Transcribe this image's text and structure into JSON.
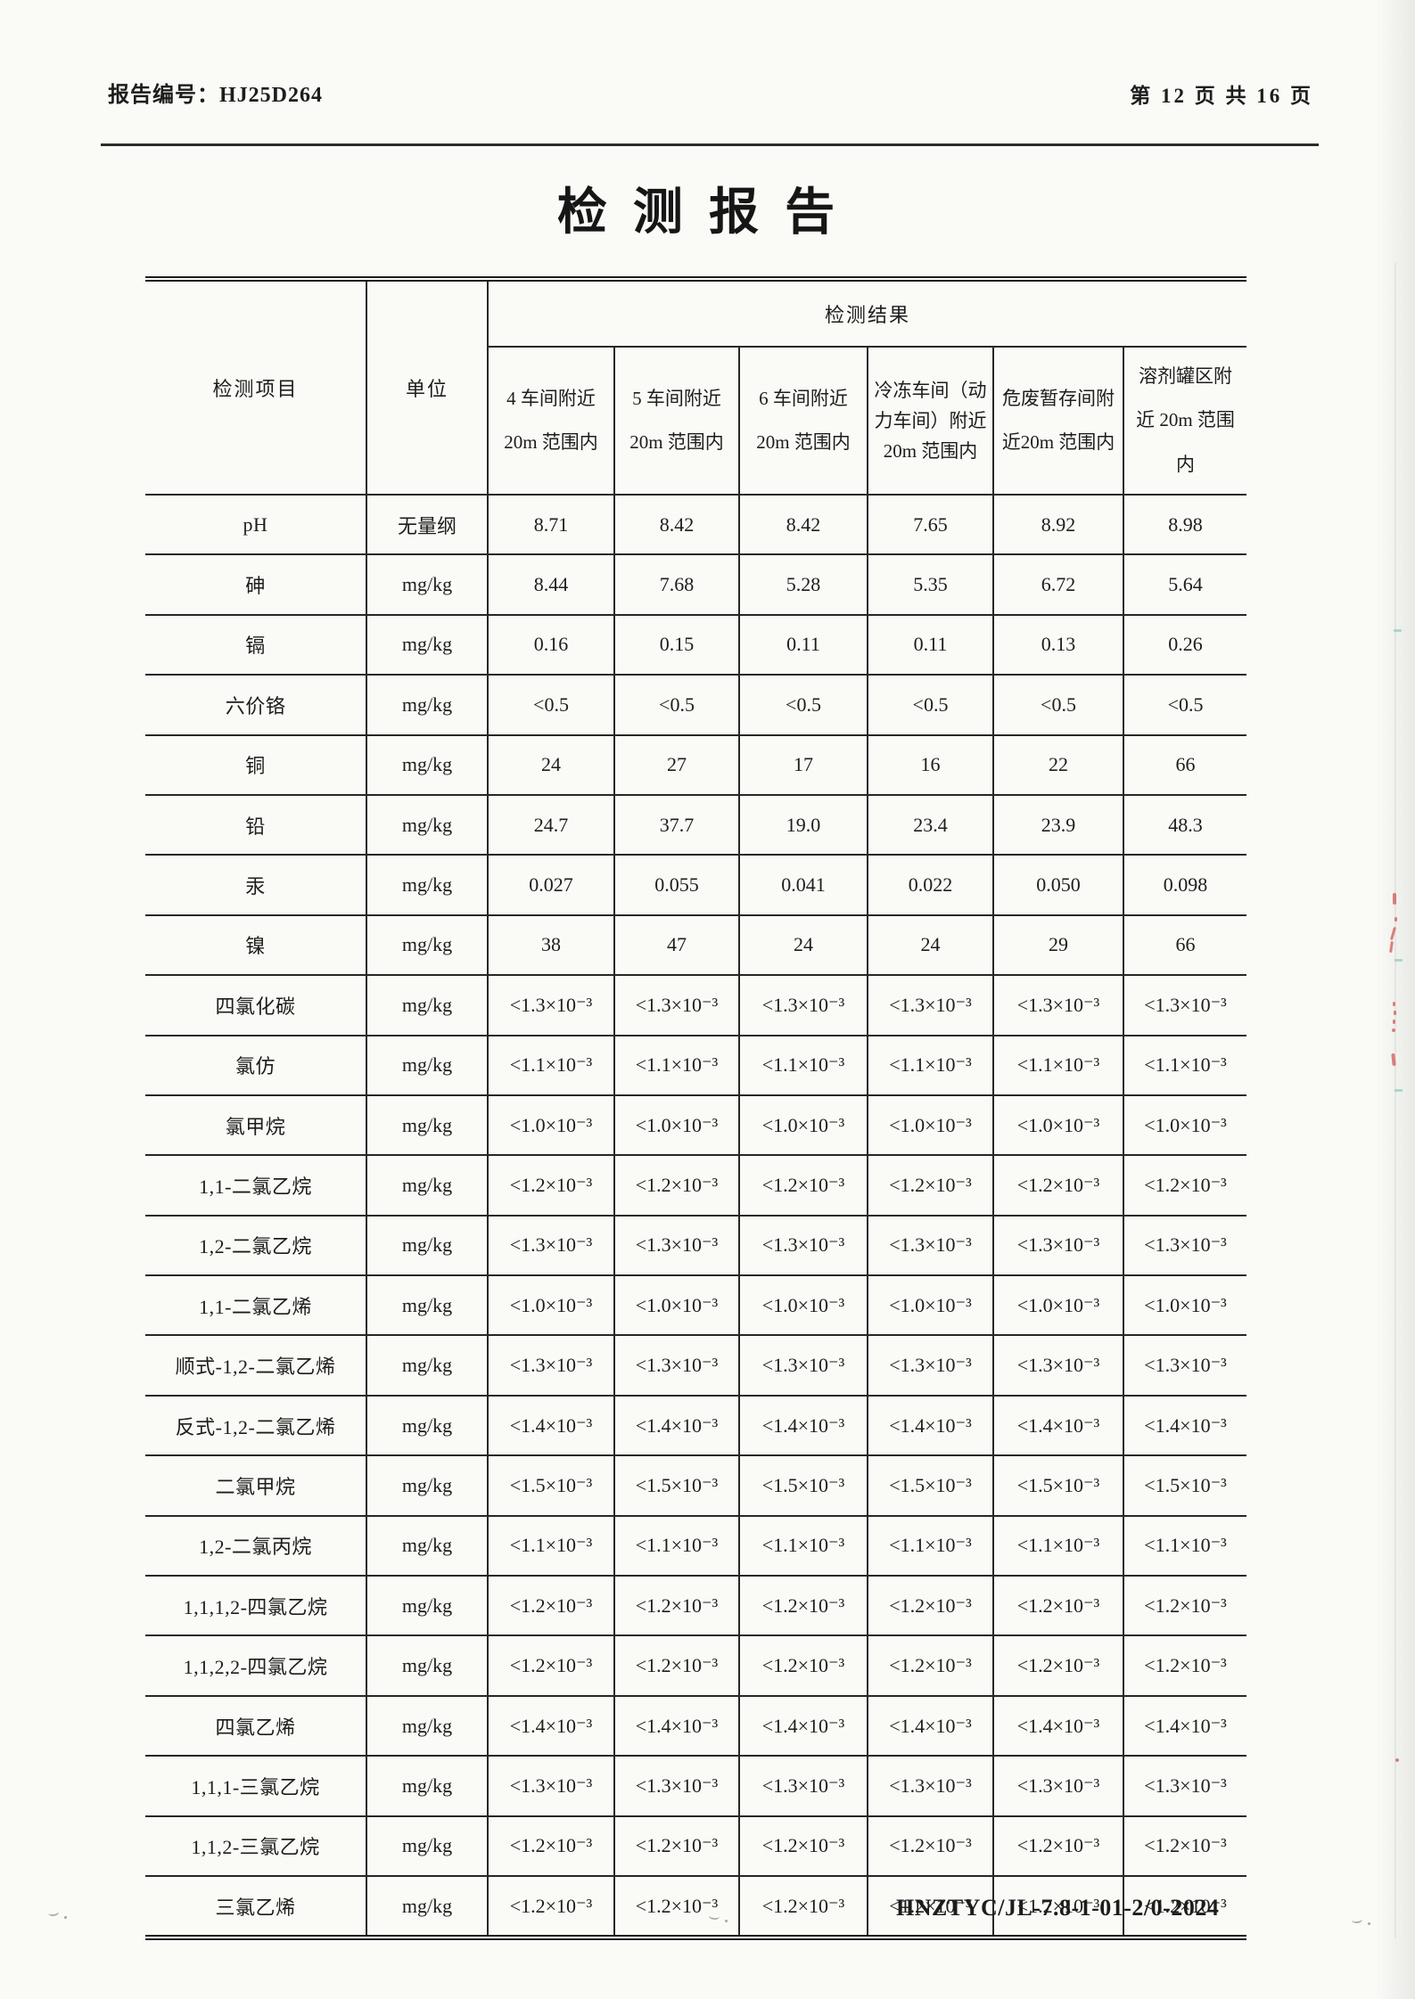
{
  "header": {
    "report_no_label": "报告编号：",
    "report_no": "HJ25D264",
    "page_info": "第 12 页 共 16 页"
  },
  "title": "检测报告",
  "table": {
    "col_item": "检测项目",
    "col_unit": "单位",
    "results_header": "检测结果",
    "locations": [
      "4 车间附近 20m 范围内",
      "5 车间附近 20m 范围内",
      "6 车间附近 20m 范围内",
      "冷冻车间（动力车间）附近 20m 范围内",
      "危废暂存间附近20m 范围内",
      "溶剂罐区附近 20m 范围内"
    ],
    "rows": [
      {
        "item": "pH",
        "unit": "无量纲",
        "values": [
          "8.71",
          "8.42",
          "8.42",
          "7.65",
          "8.92",
          "8.98"
        ]
      },
      {
        "item": "砷",
        "unit": "mg/kg",
        "values": [
          "8.44",
          "7.68",
          "5.28",
          "5.35",
          "6.72",
          "5.64"
        ]
      },
      {
        "item": "镉",
        "unit": "mg/kg",
        "values": [
          "0.16",
          "0.15",
          "0.11",
          "0.11",
          "0.13",
          "0.26"
        ]
      },
      {
        "item": "六价铬",
        "unit": "mg/kg",
        "values": [
          "<0.5",
          "<0.5",
          "<0.5",
          "<0.5",
          "<0.5",
          "<0.5"
        ]
      },
      {
        "item": "铜",
        "unit": "mg/kg",
        "values": [
          "24",
          "27",
          "17",
          "16",
          "22",
          "66"
        ]
      },
      {
        "item": "铅",
        "unit": "mg/kg",
        "values": [
          "24.7",
          "37.7",
          "19.0",
          "23.4",
          "23.9",
          "48.3"
        ]
      },
      {
        "item": "汞",
        "unit": "mg/kg",
        "values": [
          "0.027",
          "0.055",
          "0.041",
          "0.022",
          "0.050",
          "0.098"
        ]
      },
      {
        "item": "镍",
        "unit": "mg/kg",
        "values": [
          "38",
          "47",
          "24",
          "24",
          "29",
          "66"
        ]
      },
      {
        "item": "四氯化碳",
        "unit": "mg/kg",
        "values": [
          "<1.3×10⁻³",
          "<1.3×10⁻³",
          "<1.3×10⁻³",
          "<1.3×10⁻³",
          "<1.3×10⁻³",
          "<1.3×10⁻³"
        ]
      },
      {
        "item": "氯仿",
        "unit": "mg/kg",
        "values": [
          "<1.1×10⁻³",
          "<1.1×10⁻³",
          "<1.1×10⁻³",
          "<1.1×10⁻³",
          "<1.1×10⁻³",
          "<1.1×10⁻³"
        ]
      },
      {
        "item": "氯甲烷",
        "unit": "mg/kg",
        "values": [
          "<1.0×10⁻³",
          "<1.0×10⁻³",
          "<1.0×10⁻³",
          "<1.0×10⁻³",
          "<1.0×10⁻³",
          "<1.0×10⁻³"
        ]
      },
      {
        "item": "1,1-二氯乙烷",
        "unit": "mg/kg",
        "values": [
          "<1.2×10⁻³",
          "<1.2×10⁻³",
          "<1.2×10⁻³",
          "<1.2×10⁻³",
          "<1.2×10⁻³",
          "<1.2×10⁻³"
        ]
      },
      {
        "item": "1,2-二氯乙烷",
        "unit": "mg/kg",
        "values": [
          "<1.3×10⁻³",
          "<1.3×10⁻³",
          "<1.3×10⁻³",
          "<1.3×10⁻³",
          "<1.3×10⁻³",
          "<1.3×10⁻³"
        ]
      },
      {
        "item": "1,1-二氯乙烯",
        "unit": "mg/kg",
        "values": [
          "<1.0×10⁻³",
          "<1.0×10⁻³",
          "<1.0×10⁻³",
          "<1.0×10⁻³",
          "<1.0×10⁻³",
          "<1.0×10⁻³"
        ]
      },
      {
        "item": "顺式-1,2-二氯乙烯",
        "unit": "mg/kg",
        "values": [
          "<1.3×10⁻³",
          "<1.3×10⁻³",
          "<1.3×10⁻³",
          "<1.3×10⁻³",
          "<1.3×10⁻³",
          "<1.3×10⁻³"
        ]
      },
      {
        "item": "反式-1,2-二氯乙烯",
        "unit": "mg/kg",
        "values": [
          "<1.4×10⁻³",
          "<1.4×10⁻³",
          "<1.4×10⁻³",
          "<1.4×10⁻³",
          "<1.4×10⁻³",
          "<1.4×10⁻³"
        ]
      },
      {
        "item": "二氯甲烷",
        "unit": "mg/kg",
        "values": [
          "<1.5×10⁻³",
          "<1.5×10⁻³",
          "<1.5×10⁻³",
          "<1.5×10⁻³",
          "<1.5×10⁻³",
          "<1.5×10⁻³"
        ]
      },
      {
        "item": "1,2-二氯丙烷",
        "unit": "mg/kg",
        "values": [
          "<1.1×10⁻³",
          "<1.1×10⁻³",
          "<1.1×10⁻³",
          "<1.1×10⁻³",
          "<1.1×10⁻³",
          "<1.1×10⁻³"
        ]
      },
      {
        "item": "1,1,1,2-四氯乙烷",
        "unit": "mg/kg",
        "values": [
          "<1.2×10⁻³",
          "<1.2×10⁻³",
          "<1.2×10⁻³",
          "<1.2×10⁻³",
          "<1.2×10⁻³",
          "<1.2×10⁻³"
        ]
      },
      {
        "item": "1,1,2,2-四氯乙烷",
        "unit": "mg/kg",
        "values": [
          "<1.2×10⁻³",
          "<1.2×10⁻³",
          "<1.2×10⁻³",
          "<1.2×10⁻³",
          "<1.2×10⁻³",
          "<1.2×10⁻³"
        ]
      },
      {
        "item": "四氯乙烯",
        "unit": "mg/kg",
        "values": [
          "<1.4×10⁻³",
          "<1.4×10⁻³",
          "<1.4×10⁻³",
          "<1.4×10⁻³",
          "<1.4×10⁻³",
          "<1.4×10⁻³"
        ]
      },
      {
        "item": "1,1,1-三氯乙烷",
        "unit": "mg/kg",
        "values": [
          "<1.3×10⁻³",
          "<1.3×10⁻³",
          "<1.3×10⁻³",
          "<1.3×10⁻³",
          "<1.3×10⁻³",
          "<1.3×10⁻³"
        ]
      },
      {
        "item": "1,1,2-三氯乙烷",
        "unit": "mg/kg",
        "values": [
          "<1.2×10⁻³",
          "<1.2×10⁻³",
          "<1.2×10⁻³",
          "<1.2×10⁻³",
          "<1.2×10⁻³",
          "<1.2×10⁻³"
        ]
      },
      {
        "item": "三氯乙烯",
        "unit": "mg/kg",
        "values": [
          "<1.2×10⁻³",
          "<1.2×10⁻³",
          "<1.2×10⁻³",
          "<1.2×10⁻³",
          "<1.2×10⁻³",
          "<1.2×10⁻³"
        ]
      }
    ]
  },
  "footer": {
    "doc_code": "HNZTYC/JL-7.8-1-01-2/0-2024"
  }
}
